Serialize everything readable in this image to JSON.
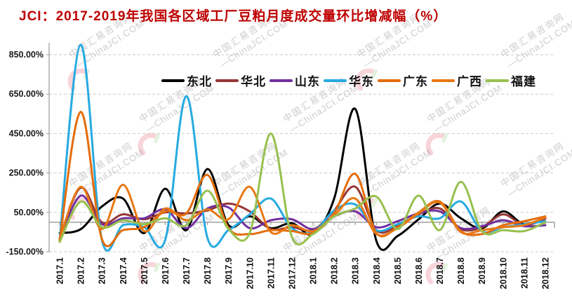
{
  "title": "JCI：2017-2019年我国各区域工厂豆粕月度成交量环比增减幅（%）",
  "title_color": "#BE0000",
  "watermark": {
    "line1": "中国汇易咨询网",
    "line2": "—ChinaJCI.COM"
  },
  "chart_data": {
    "type": "line",
    "smooth": true,
    "grid": "horizontal-dashed",
    "legend_position": "top",
    "x_labels": [
      "2017.1",
      "2017.2",
      "2017.3",
      "2017.4",
      "2017.5",
      "2017.6",
      "2017.7",
      "2017.8",
      "2017.9",
      "2017.10",
      "2017.11",
      "2017.12",
      "2018.1",
      "2018.2",
      "2018.3",
      "2018.4",
      "2018.5",
      "2018.6",
      "2018.7",
      "2018.8",
      "2018.9",
      "2018.10",
      "2018.11",
      "2018.12"
    ],
    "y_tick_labels": [
      "850.00%",
      "650.00%",
      "450.00%",
      "250.00%",
      "50.00%",
      "-150.00%"
    ],
    "y_tick_values": [
      850,
      650,
      450,
      250,
      50,
      -150
    ],
    "ylim": [
      -150,
      950
    ],
    "xlabel": "",
    "ylabel": "",
    "series": [
      {
        "name": "东北",
        "color": "#000000",
        "values": [
          -55,
          -35,
          80,
          120,
          -55,
          170,
          -40,
          270,
          -15,
          30,
          -30,
          -5,
          -60,
          120,
          575,
          -95,
          -70,
          15,
          95,
          20,
          -30,
          55,
          -10,
          25
        ]
      },
      {
        "name": "华北",
        "color": "#953735",
        "values": [
          -80,
          175,
          0,
          40,
          15,
          50,
          45,
          60,
          95,
          55,
          -35,
          -25,
          -40,
          60,
          180,
          -40,
          -20,
          40,
          70,
          -35,
          -25,
          40,
          -15,
          18
        ]
      },
      {
        "name": "山东",
        "color": "#7030A0",
        "values": [
          -85,
          135,
          -10,
          20,
          20,
          65,
          -30,
          70,
          75,
          -30,
          10,
          15,
          -35,
          30,
          55,
          -25,
          5,
          45,
          55,
          -30,
          -20,
          10,
          -20,
          -15
        ]
      },
      {
        "name": "华东",
        "color": "#27AAE1",
        "values": [
          -90,
          900,
          -90,
          -15,
          -25,
          -90,
          640,
          -80,
          -40,
          40,
          120,
          -30,
          -50,
          60,
          90,
          -40,
          -10,
          30,
          20,
          105,
          -45,
          -25,
          -10,
          5
        ]
      },
      {
        "name": "广东",
        "color": "#E36C0A",
        "values": [
          -95,
          560,
          -85,
          -40,
          -25,
          55,
          45,
          240,
          -30,
          -60,
          -40,
          -45,
          -55,
          45,
          245,
          -55,
          -25,
          50,
          105,
          -45,
          -60,
          -15,
          5,
          30
        ]
      },
      {
        "name": "广西",
        "color": "#E87813",
        "values": [
          -85,
          180,
          -35,
          190,
          -45,
          70,
          10,
          65,
          15,
          180,
          -50,
          -15,
          -45,
          35,
          120,
          -60,
          -30,
          45,
          100,
          -50,
          -40,
          -25,
          -15,
          25
        ]
      },
      {
        "name": "福建",
        "color": "#97C04E",
        "values": [
          -100,
          105,
          -25,
          10,
          -10,
          20,
          -15,
          160,
          -35,
          -55,
          450,
          -75,
          -60,
          30,
          70,
          130,
          -35,
          135,
          -40,
          205,
          -45,
          -40,
          -45,
          0
        ]
      }
    ]
  }
}
